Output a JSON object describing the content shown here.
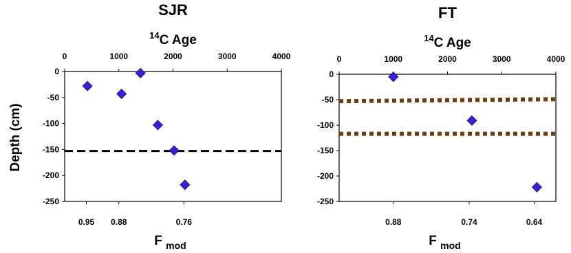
{
  "figure": {
    "ylabel": "Depth (cm)"
  },
  "chart_data": [
    {
      "type": "scatter",
      "title": "SJR",
      "top_axis": {
        "label_pre": "14",
        "label_main": "C Age",
        "range": [
          0,
          4000
        ],
        "ticks": [
          0,
          1000,
          2000,
          3000,
          4000
        ],
        "tick_labels": [
          "0",
          "1000",
          "2000",
          "3000",
          "4000"
        ]
      },
      "y_axis": {
        "range": [
          -250,
          0
        ],
        "ticks": [
          0,
          -50,
          -100,
          -150,
          -200,
          -250
        ],
        "tick_labels": [
          "0",
          "-50",
          "-100",
          "-150",
          "-200",
          "-250"
        ]
      },
      "bottom_axis": {
        "label_main": "F",
        "label_sub": "mod",
        "tick_labels": [
          {
            "age": 400,
            "label": "0.95"
          },
          {
            "age": 1000,
            "label": "0.88"
          },
          {
            "age": 2200,
            "label": "0.76"
          }
        ]
      },
      "points": [
        {
          "age": 420,
          "depth": -28
        },
        {
          "age": 1050,
          "depth": -43
        },
        {
          "age": 1400,
          "depth": -3
        },
        {
          "age": 1720,
          "depth": -103
        },
        {
          "age": 2020,
          "depth": -152
        },
        {
          "age": 2220,
          "depth": -218
        }
      ],
      "reference_lines": [
        {
          "style": "dashed",
          "color": "#000000",
          "y_start": -153,
          "y_end": -153
        }
      ],
      "marker_color": "#3a1fd6",
      "marker": "diamond"
    },
    {
      "type": "scatter",
      "title": "FT",
      "top_axis": {
        "label_pre": "14",
        "label_main": "C Age",
        "range": [
          0,
          4000
        ],
        "ticks": [
          0,
          1000,
          2000,
          3000,
          4000
        ],
        "tick_labels": [
          "0",
          "1000",
          "2000",
          "3000",
          "4000"
        ]
      },
      "y_axis": {
        "range": [
          -250,
          0
        ],
        "ticks": [
          0,
          -50,
          -100,
          -150,
          -200,
          -250
        ],
        "tick_labels": [
          "0",
          "-50",
          "-100",
          "-150",
          "-200",
          "-250"
        ]
      },
      "bottom_axis": {
        "label_main": "F",
        "label_sub": "mod",
        "tick_labels": [
          {
            "age": 1000,
            "label": "0.88"
          },
          {
            "age": 2400,
            "label": "0.74"
          },
          {
            "age": 3600,
            "label": "0.64"
          }
        ]
      },
      "points": [
        {
          "age": 1000,
          "depth": -5
        },
        {
          "age": 2450,
          "depth": -91
        },
        {
          "age": 3650,
          "depth": -222
        }
      ],
      "reference_lines": [
        {
          "style": "dotted",
          "color": "#6b3d12",
          "y_start": -53,
          "y_end": -49
        },
        {
          "style": "dotted",
          "color": "#6b3d12",
          "y_start": -117,
          "y_end": -117
        }
      ],
      "marker_color": "#3a1fd6",
      "marker": "diamond"
    }
  ]
}
